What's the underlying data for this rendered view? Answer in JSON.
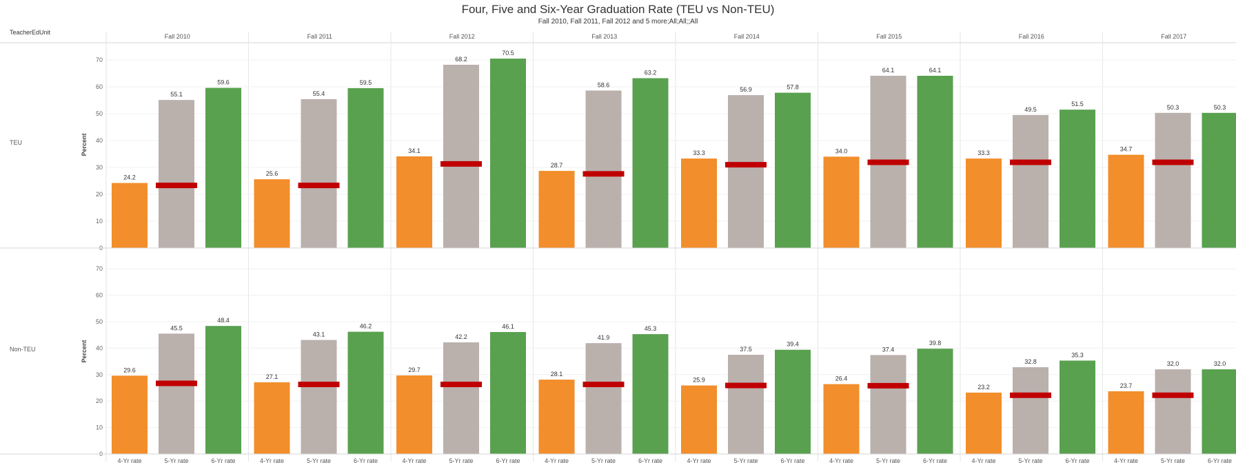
{
  "title": "Four, Five and Six-Year Graduation Rate (TEU vs Non-TEU)",
  "subtitle": "Fall 2010, Fall 2011, Fall 2012 and 5 more;All;All;;All",
  "row_field_label": "TeacherEdUnit",
  "colors": {
    "4-Yr rate": "#f28e2b",
    "5-Yr rate": "#bab0ac",
    "6-Yr rate": "#59a14f",
    "reference": "#c00000",
    "grid": "#e6e6e6",
    "divider": "#d4d4d4"
  },
  "chart_data": {
    "type": "bar",
    "ylabel": "Percent",
    "ylim": [
      0,
      72
    ],
    "yticks": [
      0,
      10,
      20,
      30,
      40,
      50,
      60,
      70
    ],
    "columns": [
      "Fall 2010",
      "Fall 2011",
      "Fall 2012",
      "Fall 2013",
      "Fall 2014",
      "Fall 2015",
      "Fall 2016",
      "Fall 2017"
    ],
    "measures": [
      "4-Yr rate",
      "5-Yr rate",
      "6-Yr rate"
    ],
    "rows": [
      {
        "name": "TEU",
        "values": [
          [
            24.2,
            55.1,
            59.6
          ],
          [
            25.6,
            55.4,
            59.5
          ],
          [
            34.1,
            68.2,
            70.5
          ],
          [
            28.7,
            58.6,
            63.2
          ],
          [
            33.3,
            56.9,
            57.8
          ],
          [
            34.0,
            64.1,
            64.1
          ],
          [
            33.3,
            49.5,
            51.5
          ],
          [
            34.7,
            50.3,
            50.3
          ]
        ],
        "reference": [
          23.3,
          23.3,
          31.3,
          27.6,
          31.0,
          31.9,
          31.9,
          31.9
        ]
      },
      {
        "name": "Non-TEU",
        "values": [
          [
            29.6,
            45.5,
            48.4
          ],
          [
            27.1,
            43.1,
            46.2
          ],
          [
            29.7,
            42.2,
            46.1
          ],
          [
            28.1,
            41.9,
            45.3
          ],
          [
            25.9,
            37.5,
            39.4
          ],
          [
            26.4,
            37.4,
            39.8
          ],
          [
            23.2,
            32.8,
            35.3
          ],
          [
            23.7,
            32.0,
            32.0
          ]
        ],
        "reference": [
          26.7,
          26.3,
          26.3,
          26.3,
          25.9,
          25.8,
          22.2,
          22.2
        ]
      }
    ]
  }
}
